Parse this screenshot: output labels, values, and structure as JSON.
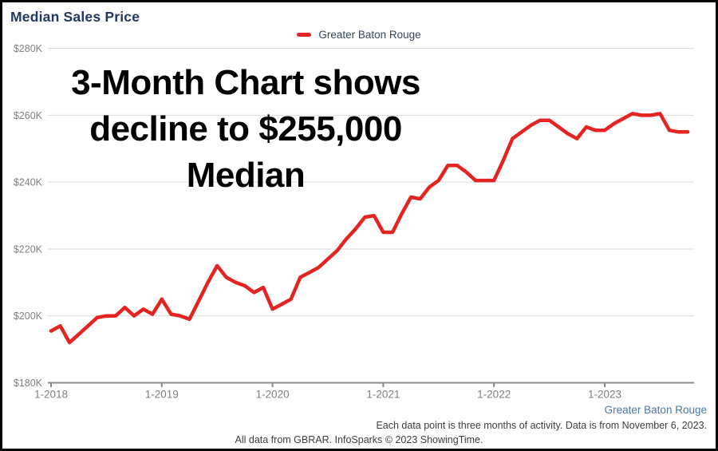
{
  "header": {
    "title": "Median Sales Price"
  },
  "legend": {
    "label": "Greater Baton Rouge",
    "swatch_color": "#e32420"
  },
  "annotation": {
    "lines": [
      "3-Month Chart shows",
      "decline to $255,000",
      "Median"
    ],
    "color": "#000000"
  },
  "chart_data": {
    "type": "line",
    "title": "Median Sales Price",
    "x_start": "1-2018",
    "x_end": "10-2023",
    "points_per_year": 12,
    "x_tick_labels": [
      "1-2018",
      "1-2019",
      "1-2020",
      "1-2021",
      "1-2022",
      "1-2023"
    ],
    "x_tick_indices": [
      0,
      12,
      24,
      36,
      48,
      60
    ],
    "y_ticks": [
      180,
      200,
      220,
      240,
      260,
      280
    ],
    "y_tick_labels": [
      "$180K",
      "$200K",
      "$220K",
      "$240K",
      "$260K",
      "$280K"
    ],
    "ylim": [
      180,
      280
    ],
    "unit": "thousand USD",
    "grid": "horizontal",
    "legend_position": "top-center",
    "series": [
      {
        "name": "Greater Baton Rouge",
        "color": "#e32420",
        "values": [
          195.5,
          197,
          192,
          194.5,
          197,
          199.5,
          200,
          200,
          202.5,
          200,
          202,
          200.5,
          205,
          200.5,
          200,
          199,
          204.5,
          210,
          215,
          211.5,
          210,
          209,
          207,
          208.5,
          202,
          203.5,
          205,
          211.5,
          213,
          214.5,
          217,
          219.5,
          223,
          226,
          229.5,
          230,
          225,
          225,
          230.5,
          235.5,
          235,
          238.5,
          240.5,
          245,
          245,
          243,
          240.5,
          240.5,
          240.5,
          246.5,
          253,
          255,
          257,
          258.5,
          258.5,
          256.5,
          254.5,
          253,
          256.5,
          255.5,
          255.5,
          257.5,
          259,
          260.5,
          260,
          260,
          260.5,
          255.5,
          255,
          255
        ]
      }
    ]
  },
  "footer": {
    "series_label": "Greater Baton Rouge",
    "note_right": "Each data point is three months of activity. Data is from November 6, 2023.",
    "note_center": "All data from GBRAR. InfoSparks © 2023 ShowingTime."
  },
  "colors": {
    "line_red": "#e32420",
    "title_navy": "#1f3864",
    "legend_text": "#31475c",
    "axis_label_gray": "#7f7f7f",
    "gridline_gray": "#d9d9d9",
    "axis_line_gray": "#8a8a8a",
    "footer_blue": "#4a77a8",
    "footer_gray": "#3d3d3d",
    "frame_border": "#000000"
  }
}
